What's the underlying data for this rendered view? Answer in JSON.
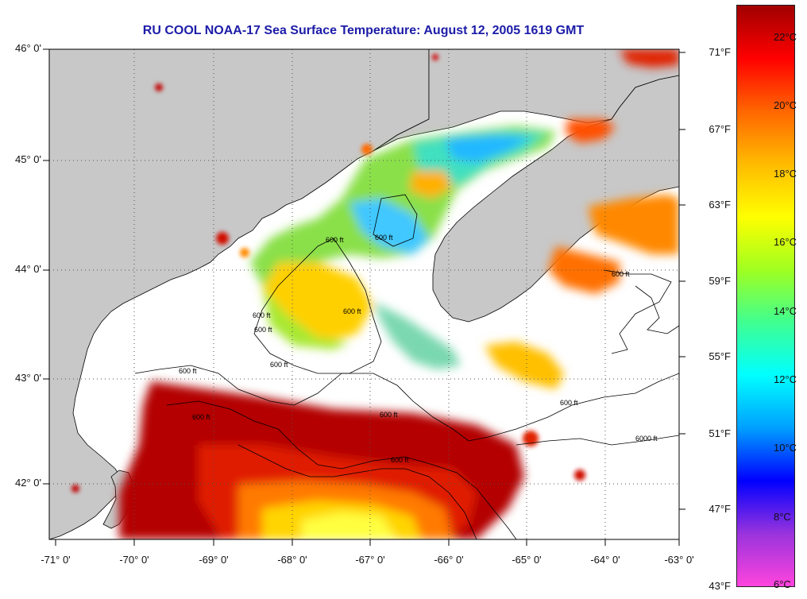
{
  "title": "RU COOL  NOAA-17  Sea Surface Temperature:  August 12, 2005 1619 GMT",
  "latitude_labels": [
    "46° 0'",
    "45° 0'",
    "44° 0'",
    "43° 0'",
    "42° 0'"
  ],
  "longitude_labels": [
    "-71° 0'",
    "-70° 0'",
    "-69° 0'",
    "-68° 0'",
    "-67° 0'",
    "-66° 0'",
    "-65° 0'",
    "-64° 0'",
    "-63° 0'"
  ],
  "fahrenheit_labels": [
    "71°F",
    "67°F",
    "63°F",
    "59°F",
    "55°F",
    "51°F",
    "47°F",
    "43°F"
  ],
  "celsius_labels": [
    "22°C",
    "20°C",
    "18°C",
    "16°C",
    "14°C",
    "12°C",
    "10°C",
    "8°C",
    "6°C"
  ],
  "contour_labels": [
    "600 ft",
    "600 ft",
    "600 ft",
    "600 ft",
    "600 ft",
    "600 ft",
    "600 ft",
    "600 ft",
    "6000 ft",
    "600 ft",
    "600 ft",
    "600 ft",
    "600 ft"
  ],
  "colors": {
    "land": "#c8c8c8",
    "no_data": "#ffffff",
    "title": "#1c1ca8",
    "colorbar_stops": [
      "#ff44dd",
      "#9933dd",
      "#0000ff",
      "#00a0ff",
      "#00ffff",
      "#40ff90",
      "#a0ff20",
      "#ffff00",
      "#ffbb00",
      "#ff6600",
      "#ff0000",
      "#a00000"
    ]
  }
}
